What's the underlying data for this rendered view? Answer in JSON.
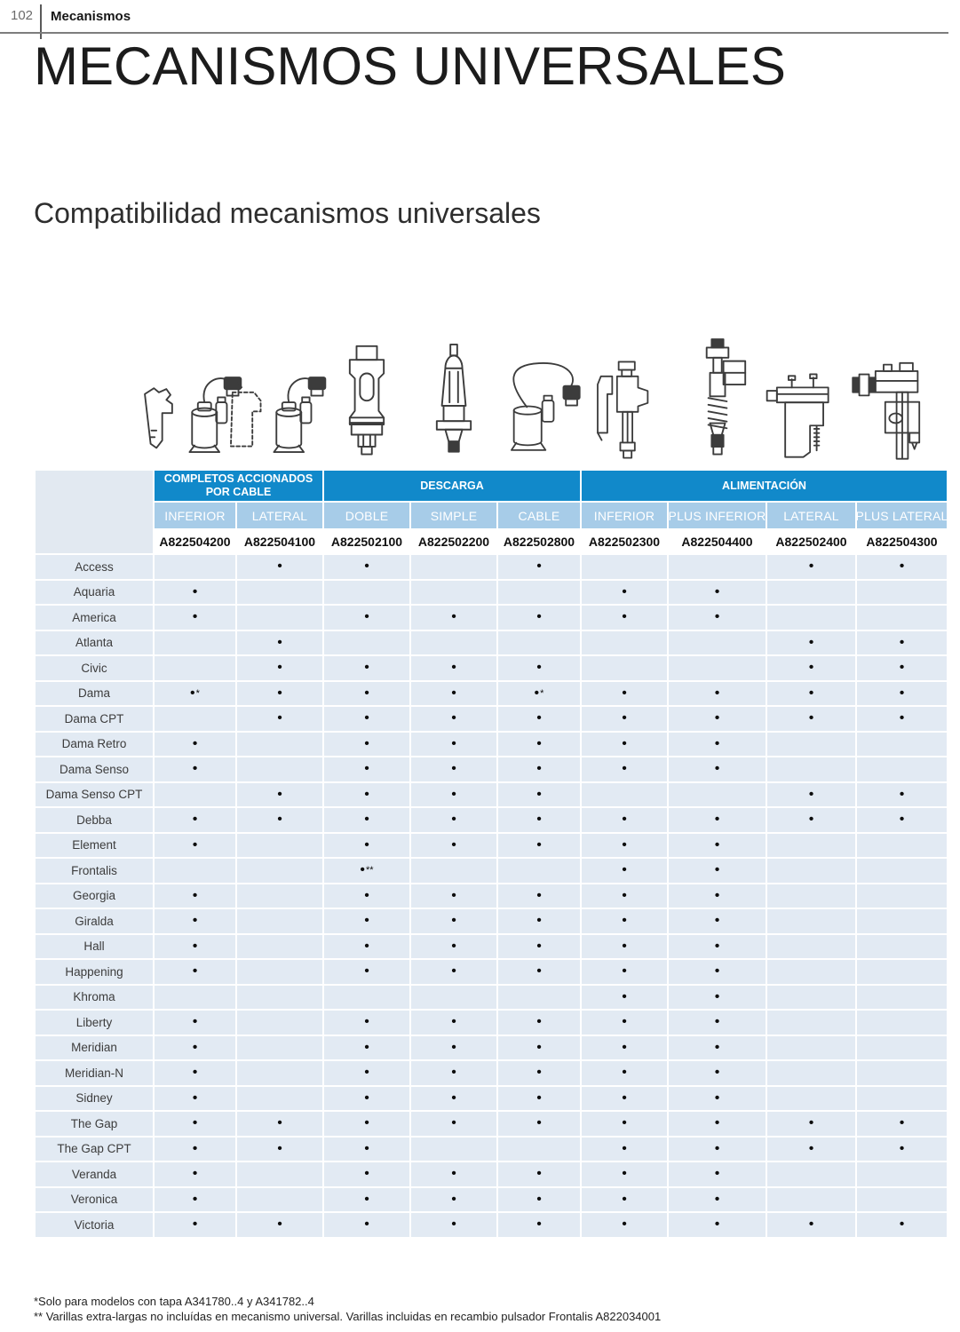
{
  "page": {
    "number": "102",
    "section": "Mecanismos",
    "title": "MECANISMOS UNIVERSALES",
    "subtitle": "Compatibilidad mecanismos universales"
  },
  "colors": {
    "group_header_blue": "#1189ca",
    "subheader_blue": "#a7cce8",
    "row_blue": "#e2eaf3",
    "rule_gray": "#7d7d7d"
  },
  "illustrations": [
    "flush-mechanism-cable-inferior-icon",
    "flush-mechanism-cable-lateral-icon",
    "flush-valve-double-icon",
    "flush-valve-simple-icon",
    "flush-valve-cable-icon",
    "fill-valve-inferior-icon",
    "fill-valve-plus-inferior-icon",
    "fill-valve-lateral-icon",
    "fill-valve-plus-lateral-icon"
  ],
  "table": {
    "groups": [
      {
        "label": "COMPLETOS ACCIONADOS POR CABLE",
        "span": 2
      },
      {
        "label": "DESCARGA",
        "span": 3
      },
      {
        "label": "ALIMENTACIÓN",
        "span": 4
      }
    ],
    "columns": [
      {
        "type": "INFERIOR",
        "code": "A822504200"
      },
      {
        "type": "LATERAL",
        "code": "A822504100"
      },
      {
        "type": "DOBLE",
        "code": "A822502100"
      },
      {
        "type": "SIMPLE",
        "code": "A822502200"
      },
      {
        "type": "CABLE",
        "code": "A822502800"
      },
      {
        "type": "INFERIOR",
        "code": "A822502300"
      },
      {
        "type": "PLUS INFERIOR",
        "code": "A822504400"
      },
      {
        "type": "LATERAL",
        "code": "A822502400"
      },
      {
        "type": "PLUS LATERAL",
        "code": "A822504300"
      }
    ],
    "rows": [
      {
        "model": "Access",
        "marks": [
          "",
          "•",
          "•",
          "",
          "•",
          "",
          "",
          "•",
          "•"
        ]
      },
      {
        "model": "Aquaria",
        "marks": [
          "•",
          "",
          "",
          "",
          "",
          "•",
          "•",
          "",
          ""
        ]
      },
      {
        "model": "America",
        "marks": [
          "•",
          "",
          "•",
          "•",
          "•",
          "•",
          "•",
          "",
          ""
        ]
      },
      {
        "model": "Atlanta",
        "marks": [
          "",
          "•",
          "",
          "",
          "",
          "",
          "",
          "•",
          "•"
        ]
      },
      {
        "model": "Civic",
        "marks": [
          "",
          "•",
          "•",
          "•",
          "•",
          "",
          "",
          "•",
          "•"
        ]
      },
      {
        "model": "Dama",
        "marks": [
          "•*",
          "•",
          "•",
          "•",
          "•*",
          "•",
          "•",
          "•",
          "•"
        ]
      },
      {
        "model": "Dama CPT",
        "marks": [
          "",
          "•",
          "•",
          "•",
          "•",
          "•",
          "•",
          "•",
          "•"
        ]
      },
      {
        "model": "Dama Retro",
        "marks": [
          "•",
          "",
          "•",
          "•",
          "•",
          "•",
          "•",
          "",
          ""
        ]
      },
      {
        "model": "Dama Senso",
        "marks": [
          "•",
          "",
          "•",
          "•",
          "•",
          "•",
          "•",
          "",
          ""
        ]
      },
      {
        "model": "Dama Senso CPT",
        "marks": [
          "",
          "•",
          "•",
          "•",
          "•",
          "",
          "",
          "•",
          "•"
        ]
      },
      {
        "model": "Debba",
        "marks": [
          "•",
          "•",
          "•",
          "•",
          "•",
          "•",
          "•",
          "•",
          "•"
        ]
      },
      {
        "model": "Element",
        "marks": [
          "•",
          "",
          "•",
          "•",
          "•",
          "•",
          "•",
          "",
          ""
        ]
      },
      {
        "model": "Frontalis",
        "marks": [
          "",
          "",
          "•**",
          "",
          "",
          "•",
          "•",
          "",
          ""
        ]
      },
      {
        "model": "Georgia",
        "marks": [
          "•",
          "",
          "•",
          "•",
          "•",
          "•",
          "•",
          "",
          ""
        ]
      },
      {
        "model": "Giralda",
        "marks": [
          "•",
          "",
          "•",
          "•",
          "•",
          "•",
          "•",
          "",
          ""
        ]
      },
      {
        "model": "Hall",
        "marks": [
          "•",
          "",
          "•",
          "•",
          "•",
          "•",
          "•",
          "",
          ""
        ]
      },
      {
        "model": "Happening",
        "marks": [
          "•",
          "",
          "•",
          "•",
          "•",
          "•",
          "•",
          "",
          ""
        ]
      },
      {
        "model": "Khroma",
        "marks": [
          "",
          "",
          "",
          "",
          "",
          "•",
          "•",
          "",
          ""
        ]
      },
      {
        "model": "Liberty",
        "marks": [
          "•",
          "",
          "•",
          "•",
          "•",
          "•",
          "•",
          "",
          ""
        ]
      },
      {
        "model": "Meridian",
        "marks": [
          "•",
          "",
          "•",
          "•",
          "•",
          "•",
          "•",
          "",
          ""
        ]
      },
      {
        "model": "Meridian-N",
        "marks": [
          "•",
          "",
          "•",
          "•",
          "•",
          "•",
          "•",
          "",
          ""
        ]
      },
      {
        "model": "Sidney",
        "marks": [
          "•",
          "",
          "•",
          "•",
          "•",
          "•",
          "•",
          "",
          ""
        ]
      },
      {
        "model": "The Gap",
        "marks": [
          "•",
          "•",
          "•",
          "•",
          "•",
          "•",
          "•",
          "•",
          "•"
        ]
      },
      {
        "model": "The Gap CPT",
        "marks": [
          "•",
          "•",
          "•",
          "",
          "",
          "•",
          "•",
          "•",
          "•"
        ]
      },
      {
        "model": "Veranda",
        "marks": [
          "•",
          "",
          "•",
          "•",
          "•",
          "•",
          "•",
          "",
          ""
        ]
      },
      {
        "model": "Veronica",
        "marks": [
          "•",
          "",
          "•",
          "•",
          "•",
          "•",
          "•",
          "",
          ""
        ]
      },
      {
        "model": "Victoria",
        "marks": [
          "•",
          "•",
          "•",
          "•",
          "•",
          "•",
          "•",
          "•",
          "•"
        ]
      }
    ]
  },
  "footnotes": [
    "*Solo para modelos con tapa A341780..4 y A341782..4",
    "** Varillas extra-largas no incluídas en mecanismo universal. Varillas incluidas en recambio pulsador Frontalis A822034001"
  ]
}
